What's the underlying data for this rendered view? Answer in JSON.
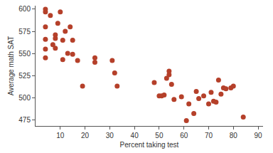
{
  "chart_data": {
    "type": "scatter",
    "x_label": "Percent taking test",
    "y_label": "Average math SAT",
    "x": [
      4,
      4,
      6,
      4,
      4,
      4,
      4,
      7,
      8,
      8,
      8,
      9,
      10,
      11,
      11,
      12,
      13,
      14,
      15,
      15,
      17,
      19,
      24,
      24,
      31,
      32,
      33,
      48,
      50,
      51,
      52,
      53,
      54,
      54,
      55,
      56,
      59,
      61,
      62,
      64,
      65,
      66,
      68,
      70,
      71,
      72,
      73,
      74,
      75,
      76,
      77,
      79,
      80,
      84
    ],
    "values": [
      600,
      597,
      593,
      580,
      566,
      555,
      545,
      560,
      571,
      567,
      556,
      584,
      597,
      565,
      543,
      575,
      550,
      580,
      549,
      565,
      542,
      513,
      545,
      540,
      542,
      528,
      513,
      517,
      502,
      502,
      503,
      522,
      530,
      526,
      515,
      498,
      501,
      474,
      493,
      482,
      507,
      499,
      502,
      493,
      506,
      496,
      495,
      520,
      504,
      511,
      510,
      511,
      513,
      478
    ],
    "color": "#b5402a",
    "marker": "circle",
    "xlim": [
      0,
      92
    ],
    "xticks": [
      10,
      20,
      30,
      40,
      50,
      60,
      70,
      80,
      90
    ],
    "ylim": [
      468,
      604
    ],
    "yticks": [
      475,
      500,
      525,
      550,
      575,
      600
    ],
    "grid": false
  }
}
